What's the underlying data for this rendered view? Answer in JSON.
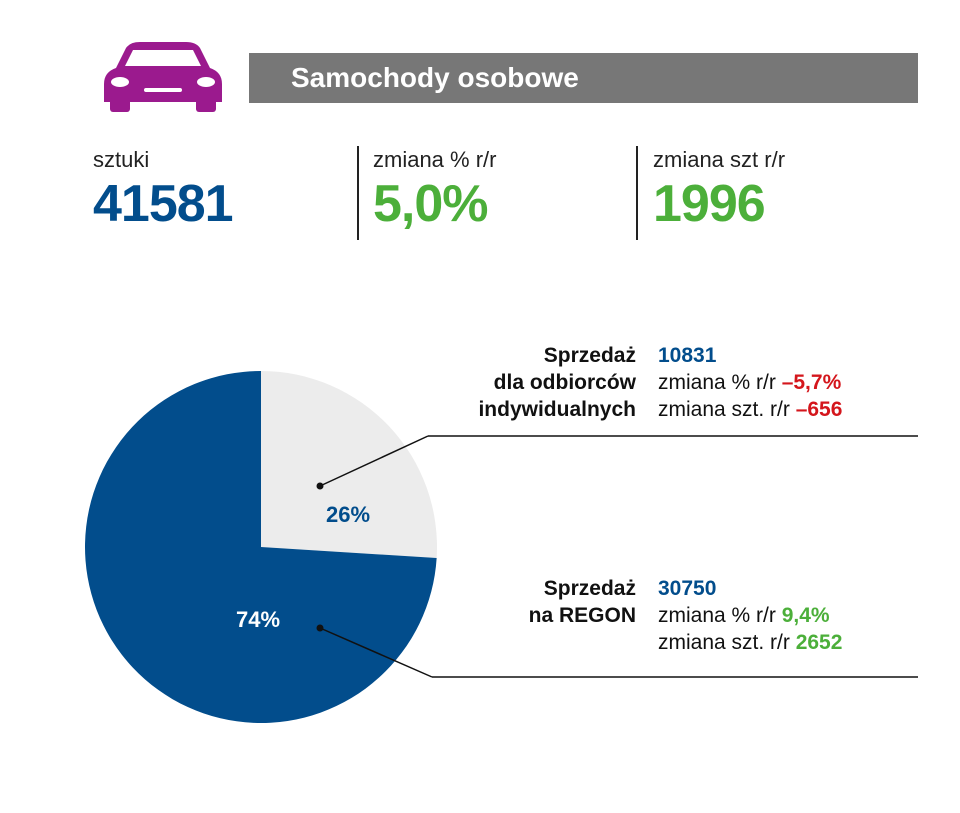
{
  "colors": {
    "accent_blue": "#024d8c",
    "green": "#4caf3a",
    "red": "#d4161c",
    "light_slice": "#ececec",
    "purple": "#9b1a8e",
    "header_gray": "#777777"
  },
  "header": {
    "icon": "car-icon",
    "title": "Samochody osobowe"
  },
  "stats": {
    "units": {
      "label": "sztuki",
      "value": "41581"
    },
    "pct_change": {
      "label": "zmiana % r/r",
      "value": "5,0%"
    },
    "unit_change": {
      "label": "zmiana szt r/r",
      "value": "1996"
    }
  },
  "segments": {
    "individual": {
      "name_lines": [
        "Sprzedaż",
        "dla odbiorców",
        "indywidualnych"
      ],
      "value": "10831",
      "pct_label": "zmiana % r/r",
      "pct_value": "–5,7%",
      "unit_label": "zmiana szt. r/r",
      "unit_value": "–656"
    },
    "regon": {
      "name_lines": [
        "Sprzedaż",
        "na REGON"
      ],
      "value": "30750",
      "pct_label": "zmiana % r/r",
      "pct_value": "9,4%",
      "unit_label": "zmiana szt. r/r",
      "unit_value": "2652"
    }
  },
  "chart_data": {
    "type": "pie",
    "slices": [
      {
        "label": "26%",
        "value": 26,
        "color": "#ececec"
      },
      {
        "label": "74%",
        "value": 74,
        "color": "#024d8c"
      }
    ]
  }
}
